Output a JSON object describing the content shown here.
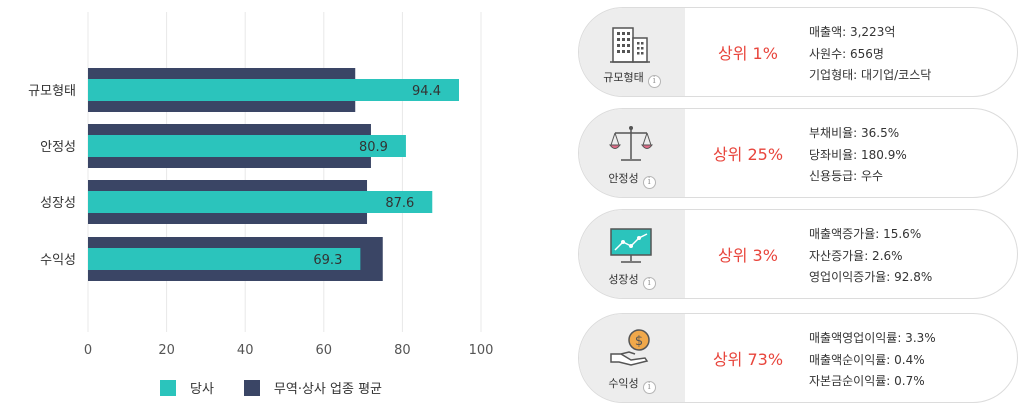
{
  "chart_data": {
    "type": "bar",
    "orientation": "horizontal",
    "categories": [
      "규모형태",
      "안정성",
      "성장성",
      "수익성"
    ],
    "series": [
      {
        "name": "당사",
        "values": [
          94.4,
          80.9,
          87.6,
          69.3
        ],
        "color": "#2bc4bc"
      },
      {
        "name": "무역·상사 업종 평균",
        "values": [
          68,
          72,
          71,
          75
        ],
        "color": "#3a4565"
      }
    ],
    "x_ticks": [
      0,
      20,
      40,
      60,
      80,
      100
    ],
    "xlim": [
      0,
      100
    ],
    "grid": true,
    "legend_position": "bottom"
  },
  "cards": [
    {
      "icon": "building-icon",
      "label": "규모형태",
      "rank": "상위 1%",
      "details": [
        "매출액: 3,223억",
        "사원수: 656명",
        "기업형태: 대기업/코스닥"
      ]
    },
    {
      "icon": "scale-icon",
      "label": "안정성",
      "rank": "상위 25%",
      "details": [
        "부채비율: 36.5%",
        "당좌비율: 180.9%",
        "신용등급: 우수"
      ]
    },
    {
      "icon": "monitor-graph-icon",
      "label": "성장성",
      "rank": "상위 3%",
      "details": [
        "매출액증가율: 15.6%",
        "자산증가율: 2.6%",
        "영업이익증가율: 92.8%"
      ]
    },
    {
      "icon": "coin-hand-icon",
      "label": "수익성",
      "rank": "상위 73%",
      "details": [
        "매출액영업이익률: 3.3%",
        "매출액순이익률: 0.4%",
        "자본금순이익률: 0.7%"
      ]
    }
  ],
  "info_glyph": "i",
  "colors": {
    "accent_red": "#e8453c",
    "company": "#2bc4bc",
    "industry": "#3a4565"
  }
}
